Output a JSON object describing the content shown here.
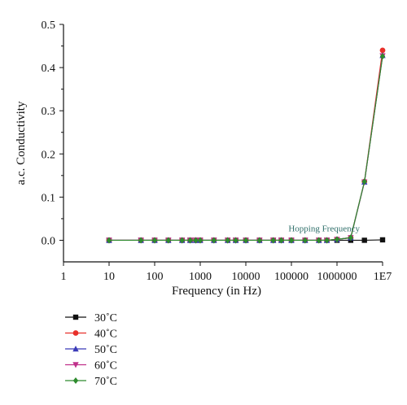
{
  "chart_data": {
    "type": "line",
    "xscale": "log",
    "xlabel": "Frequency (in Hz)",
    "ylabel": "a.c. Conductivity",
    "xlim": [
      1,
      10000000
    ],
    "ylim": [
      -0.05,
      0.5
    ],
    "x_ticks": [
      1,
      10,
      100,
      1000,
      10000,
      100000,
      1000000,
      10000000
    ],
    "x_tick_labels": [
      "1",
      "10",
      "100",
      "1000",
      "10000",
      "100000",
      "1000000",
      "1E7"
    ],
    "y_ticks": [
      0.0,
      0.1,
      0.2,
      0.3,
      0.4,
      0.5
    ],
    "y_tick_labels": [
      "0.0",
      "0.1",
      "0.2",
      "0.3",
      "0.4",
      "0.5"
    ],
    "grid": false,
    "legend_position": "bottom-left",
    "annotation": {
      "text": "Hopping Frequency",
      "color": "#2f6f6a",
      "x": 1000000,
      "y": 0.015
    },
    "x": [
      10,
      50,
      100,
      200,
      400,
      600,
      800,
      1000,
      2000,
      4000,
      6000,
      10000,
      20000,
      40000,
      60000,
      100000,
      200000,
      400000,
      600000,
      1000000,
      2000000,
      4000000,
      10000000
    ],
    "series": [
      {
        "name": "30˚C",
        "color": "#111111",
        "marker": "square",
        "values": [
          0,
          0,
          0,
          0,
          0,
          0,
          0,
          0,
          0,
          0,
          0,
          0,
          0,
          0,
          0,
          0,
          0,
          0,
          0,
          0,
          0,
          0,
          0.001
        ]
      },
      {
        "name": "40˚C",
        "color": "#e8302a",
        "marker": "circle",
        "values": [
          0,
          0,
          0,
          0,
          0,
          0,
          0,
          0,
          0,
          0,
          0,
          0,
          0,
          0,
          0,
          0,
          0,
          0,
          0,
          0.002,
          0.006,
          0.136,
          0.44
        ]
      },
      {
        "name": "50˚C",
        "color": "#3a3ab8",
        "marker": "triangle-up",
        "values": [
          0,
          0,
          0,
          0,
          0,
          0,
          0,
          0,
          0,
          0,
          0,
          0,
          0,
          0,
          0,
          0,
          0,
          0,
          0,
          0.002,
          0.006,
          0.135,
          0.428
        ]
      },
      {
        "name": "60˚C",
        "color": "#c0308a",
        "marker": "triangle-down",
        "values": [
          0,
          0,
          0,
          0,
          0,
          0,
          0,
          0,
          0,
          0,
          0,
          0,
          0,
          0,
          0,
          0,
          0,
          0,
          0,
          0.002,
          0.006,
          0.135,
          0.427
        ]
      },
      {
        "name": "70˚C",
        "color": "#2e8b2e",
        "marker": "diamond",
        "values": [
          0,
          0,
          0,
          0,
          0,
          0,
          0,
          0,
          0,
          0,
          0,
          0,
          0,
          0,
          0,
          0,
          0,
          0,
          0,
          0.002,
          0.006,
          0.136,
          0.426
        ]
      }
    ]
  }
}
